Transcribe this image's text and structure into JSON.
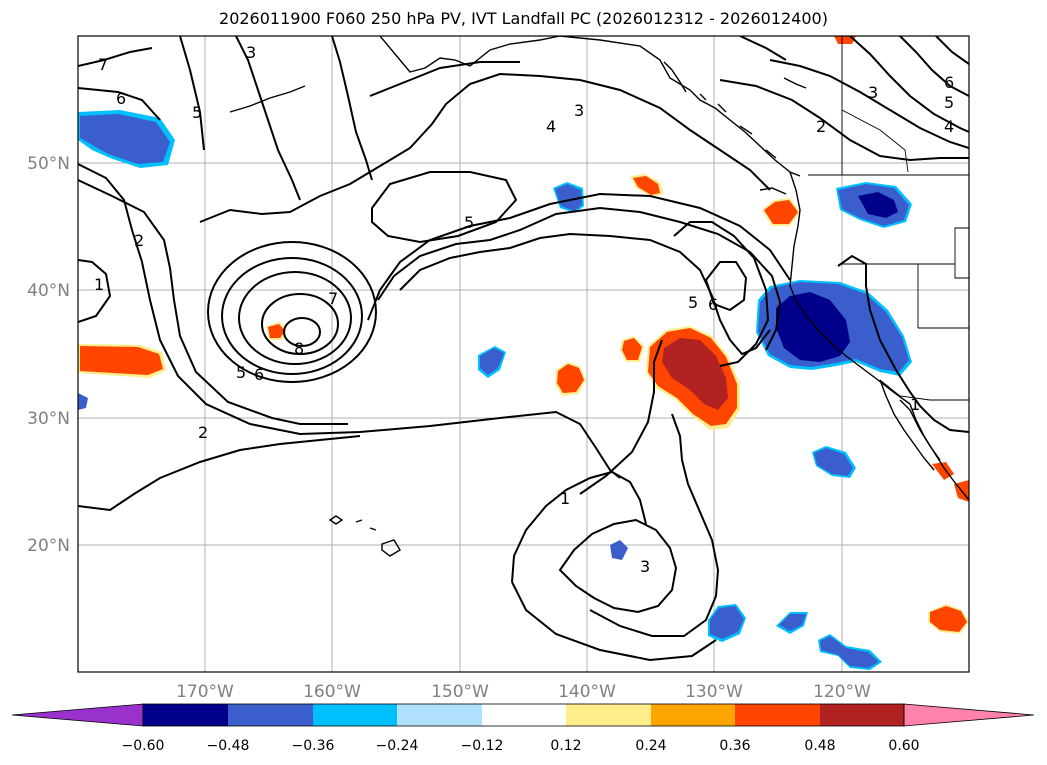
{
  "title": "2026011900 F060 250 hPa PV, IVT Landfall PC (2026012312 - 2026012400)",
  "map": {
    "lon_ticks": [
      "170°W",
      "160°W",
      "150°W",
      "140°W",
      "130°W",
      "120°W"
    ],
    "lat_ticks": [
      "50°N",
      "40°N",
      "30°N",
      "20°N"
    ],
    "contour_labels": [
      "7",
      "6",
      "5",
      "3",
      "4",
      "3",
      "2",
      "5",
      "2",
      "1",
      "7",
      "8",
      "5",
      "6",
      "5",
      "6",
      "2",
      "1",
      "3",
      "1",
      "3",
      "6",
      "5",
      "4"
    ]
  },
  "colorbar": {
    "colors": [
      "#9932cc",
      "#00008b",
      "#3a5fcd",
      "#00bfff",
      "#b0e2ff",
      "#ffffff",
      "#ffec8b",
      "#ffa500",
      "#ff4500",
      "#b22222",
      "#ff82ab",
      "#ff82ab"
    ],
    "tick_labels": [
      "−0.60",
      "−0.48",
      "−0.36",
      "−0.24",
      "−0.12",
      "0.12",
      "0.24",
      "0.36",
      "0.48",
      "0.60"
    ]
  }
}
